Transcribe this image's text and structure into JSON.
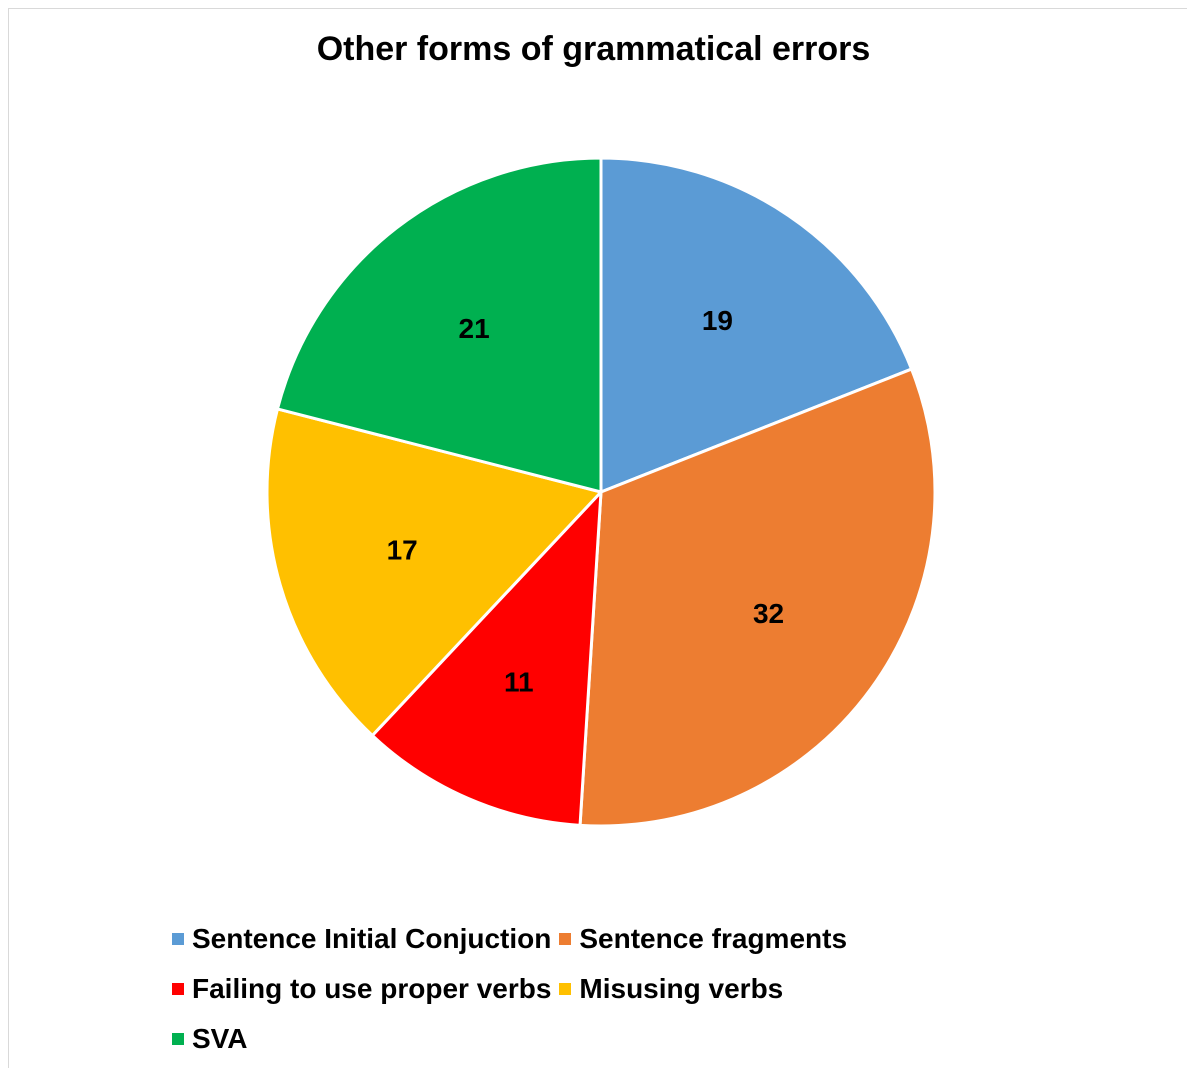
{
  "chart_data": {
    "type": "pie",
    "title": "Other forms of grammatical errors",
    "categories": [
      "Sentence Initial Conjuction",
      "Sentence fragments",
      "Failing to use proper verbs",
      "Misusing verbs",
      "SVA"
    ],
    "values": [
      19,
      32,
      11,
      17,
      21
    ],
    "data_labels": [
      "19",
      "32",
      "11",
      "17",
      "21"
    ],
    "colors": [
      "#5B9BD5",
      "#ED7D31",
      "#FF0000",
      "#FFC000",
      "#00B050"
    ],
    "start": "12 o'clock",
    "direction": "clockwise",
    "legend_position": "bottom"
  }
}
